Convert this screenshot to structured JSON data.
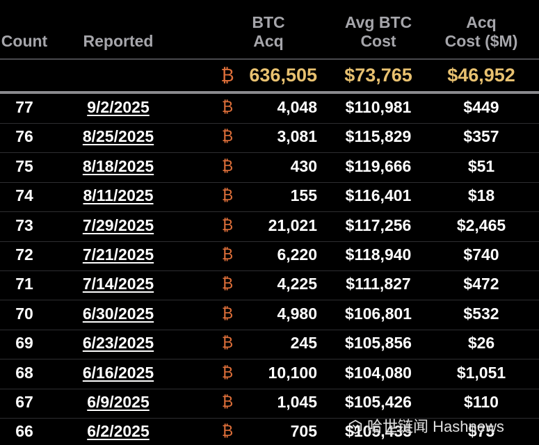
{
  "header": {
    "count": "Count",
    "reported": "Reported",
    "btc_acq": [
      "BTC",
      "Acq"
    ],
    "avg_cost": [
      "Avg BTC",
      "Cost"
    ],
    "acq_cost": [
      "Acq",
      "Cost ($M)"
    ]
  },
  "btc_symbol": "₿",
  "totals": {
    "btc_acq": "636,505",
    "avg_cost": "$73,765",
    "acq_cost": "$46,952"
  },
  "rows": [
    {
      "count": "77",
      "reported": "9/2/2025",
      "btc": "4,048",
      "avg": "$110,981",
      "cost": "$449"
    },
    {
      "count": "76",
      "reported": "8/25/2025",
      "btc": "3,081",
      "avg": "$115,829",
      "cost": "$357"
    },
    {
      "count": "75",
      "reported": "8/18/2025",
      "btc": "430",
      "avg": "$119,666",
      "cost": "$51"
    },
    {
      "count": "74",
      "reported": "8/11/2025",
      "btc": "155",
      "avg": "$116,401",
      "cost": "$18"
    },
    {
      "count": "73",
      "reported": "7/29/2025",
      "btc": "21,021",
      "avg": "$117,256",
      "cost": "$2,465"
    },
    {
      "count": "72",
      "reported": "7/21/2025",
      "btc": "6,220",
      "avg": "$118,940",
      "cost": "$740"
    },
    {
      "count": "71",
      "reported": "7/14/2025",
      "btc": "4,225",
      "avg": "$111,827",
      "cost": "$472"
    },
    {
      "count": "70",
      "reported": "6/30/2025",
      "btc": "4,980",
      "avg": "$106,801",
      "cost": "$532"
    },
    {
      "count": "69",
      "reported": "6/23/2025",
      "btc": "245",
      "avg": "$105,856",
      "cost": "$26"
    },
    {
      "count": "68",
      "reported": "6/16/2025",
      "btc": "10,100",
      "avg": "$104,080",
      "cost": "$1,051"
    },
    {
      "count": "67",
      "reported": "6/9/2025",
      "btc": "1,045",
      "avg": "$105,426",
      "cost": "$110"
    },
    {
      "count": "66",
      "reported": "6/2/2025",
      "btc": "705",
      "avg": "$105,435",
      "cost": "$75"
    }
  ],
  "watermark": {
    "icon": "hashnews-logo-icon",
    "text": "哈世链闻 Hashnews"
  },
  "colors": {
    "background": "#000000",
    "header_text": "#a6a6ab",
    "totals_gold": "#e8c170",
    "btc_orange": "#e0703a"
  }
}
